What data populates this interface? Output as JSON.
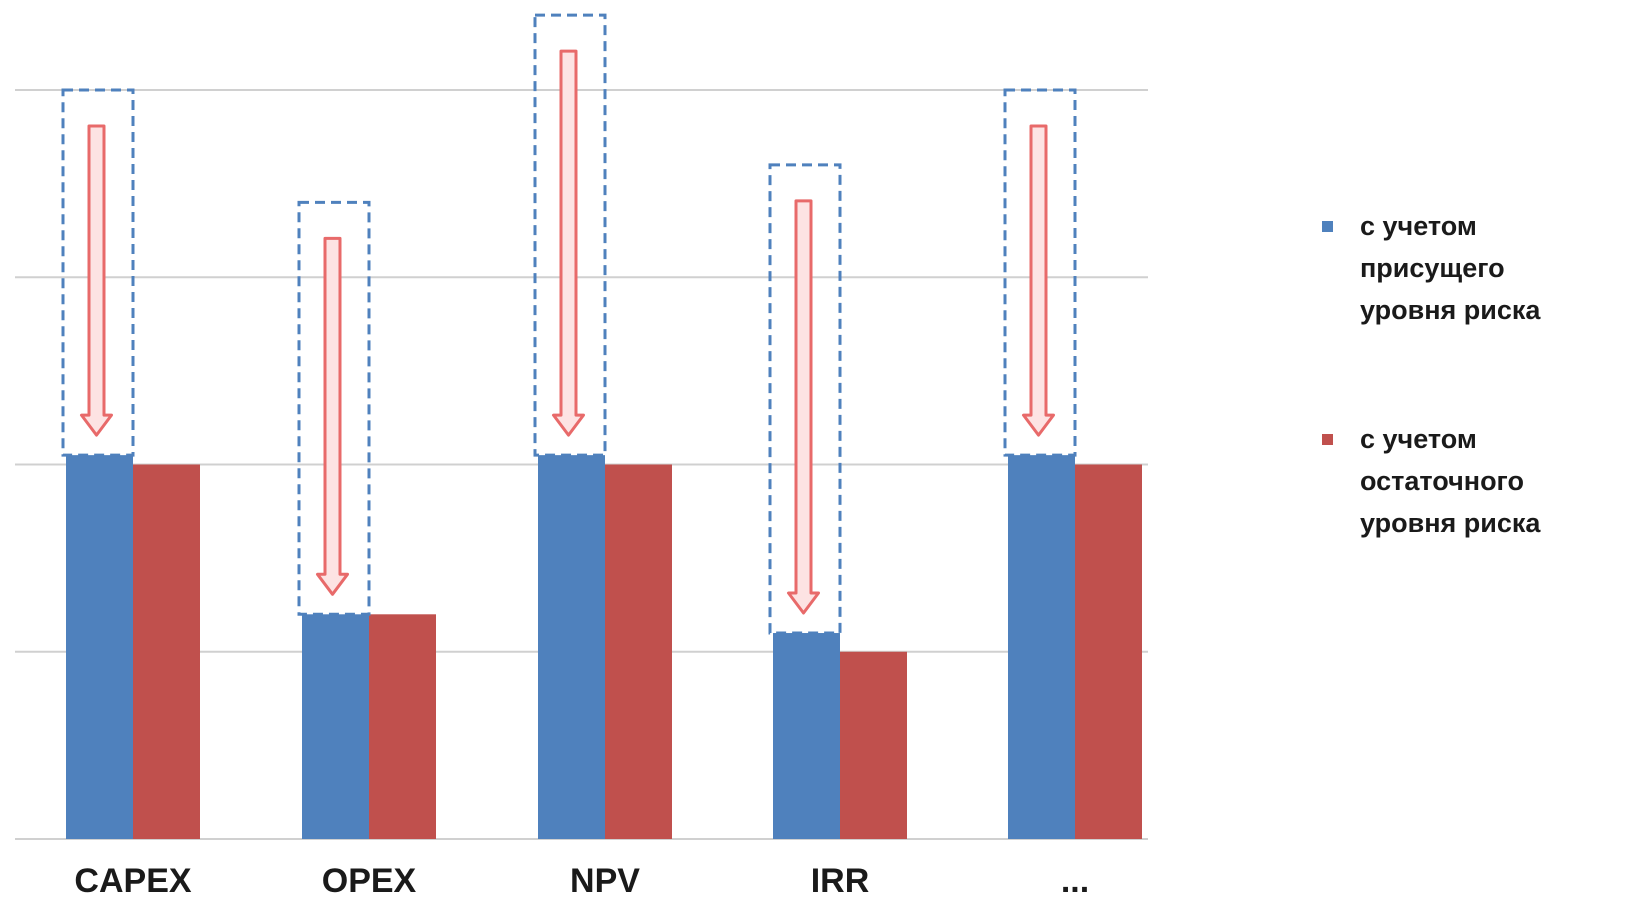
{
  "chart_data": {
    "type": "bar",
    "categories": [
      "CAPEX",
      "OPEX",
      "NPV",
      "IRR",
      "..."
    ],
    "ylim": [
      0,
      4
    ],
    "grid": true,
    "legend_position": "right",
    "series": [
      {
        "name_lines": [
          "с учетом",
          "присущего",
          "уровня риска"
        ],
        "color": "#4f81bd",
        "values": [
          2.05,
          1.2,
          2.05,
          1.1,
          2.05
        ],
        "before_mitigation": [
          4.0,
          3.4,
          4.4,
          3.6,
          4.0
        ]
      },
      {
        "name_lines": [
          "с учетом",
          "остаточного",
          "уровня риска"
        ],
        "color": "#c0504d",
        "values": [
          2.0,
          1.2,
          2.0,
          1.0,
          2.0
        ]
      }
    ],
    "annotation": {
      "type": "reduction-arrows",
      "box_color": "#4f81bd",
      "arrow_color": "#e86a6a"
    }
  }
}
